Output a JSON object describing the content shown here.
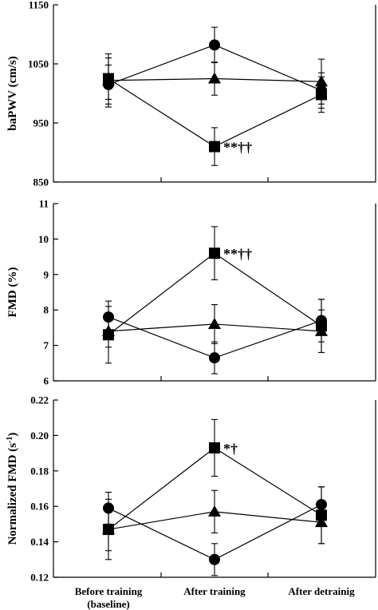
{
  "figure": {
    "categories": [
      "Before training",
      "After training",
      "After detrainig"
    ],
    "category_sublabels": [
      "(baseline)",
      "",
      ""
    ]
  },
  "chart_data": [
    {
      "type": "line",
      "ylabel": "baPWV (cm/s)",
      "ylim": [
        850,
        1150
      ],
      "yticks": [
        850,
        950,
        1050,
        1150
      ],
      "categories": [
        "Before training",
        "After training",
        "After detrainig"
      ],
      "series": [
        {
          "marker": "square",
          "values": [
            1025,
            910,
            998
          ],
          "errors": [
            35,
            32,
            30
          ]
        },
        {
          "marker": "circle",
          "values": [
            1015,
            1082,
            1005
          ],
          "errors": [
            33,
            30,
            30
          ]
        },
        {
          "marker": "triangle",
          "values": [
            1022,
            1025,
            1020
          ],
          "errors": [
            45,
            28,
            38
          ]
        }
      ],
      "annotations": [
        {
          "series": 0,
          "point": 1,
          "text": "**††"
        }
      ]
    },
    {
      "type": "line",
      "ylabel": "FMD (%)",
      "ylim": [
        6,
        11
      ],
      "yticks": [
        6,
        7,
        8,
        9,
        10,
        11
      ],
      "categories": [
        "Before training",
        "After training",
        "After detrainig"
      ],
      "series": [
        {
          "marker": "square",
          "values": [
            7.3,
            9.6,
            7.55
          ],
          "errors": [
            0.8,
            0.75,
            0.75
          ]
        },
        {
          "marker": "circle",
          "values": [
            7.8,
            6.65,
            7.7
          ],
          "errors": [
            0.45,
            0.45,
            0.6
          ]
        },
        {
          "marker": "triangle",
          "values": [
            7.4,
            7.6,
            7.4
          ],
          "errors": [
            0.45,
            0.55,
            0.6
          ]
        }
      ],
      "annotations": [
        {
          "series": 0,
          "point": 1,
          "text": "**††"
        }
      ]
    },
    {
      "type": "line",
      "ylabel": "Normalized FMD (s",
      "ylabel_sup": "-1",
      "ylabel_end": ")",
      "ylim": [
        0.12,
        0.22
      ],
      "yticks": [
        0.12,
        0.14,
        0.16,
        0.18,
        0.2,
        0.22
      ],
      "ytick_labels": [
        "0.12",
        "0.14",
        "0.16",
        "0.18",
        "0.20",
        "0.22"
      ],
      "categories": [
        "Before training",
        "After training",
        "After detrainig"
      ],
      "series": [
        {
          "marker": "square",
          "values": [
            0.147,
            0.193,
            0.155
          ],
          "errors": [
            0.017,
            0.016,
            0.016
          ]
        },
        {
          "marker": "circle",
          "values": [
            0.159,
            0.13,
            0.161
          ],
          "errors": [
            0.009,
            0.009,
            0.01
          ]
        },
        {
          "marker": "triangle",
          "values": [
            0.147,
            0.157,
            0.151
          ],
          "errors": [
            0.012,
            0.012,
            0.012
          ]
        }
      ],
      "annotations": [
        {
          "series": 0,
          "point": 1,
          "text": "*†"
        }
      ]
    }
  ]
}
